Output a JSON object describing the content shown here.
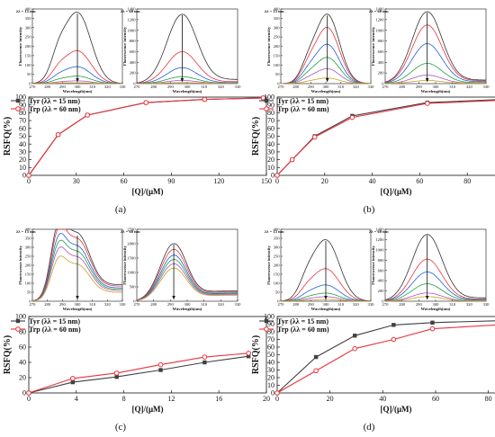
{
  "chart_data": [
    {
      "panel_label": "(a)",
      "type": "line",
      "xlabel": "[Q]/(μM)",
      "ylabel": "RSFQ(%)",
      "xlim": [
        0,
        150
      ],
      "ylim": [
        0,
        100
      ],
      "xticks": [
        0,
        30,
        60,
        90,
        120,
        150
      ],
      "yticks": [
        0,
        10,
        20,
        30,
        40,
        50,
        60,
        70,
        80,
        90,
        100
      ],
      "legend_position": "top-left",
      "series": [
        {
          "name": "Tyr (λλ = 15 nm)",
          "color": "#404040",
          "marker": "square",
          "x": [
            0,
            18.5,
            37,
            74,
            111,
            148
          ],
          "y": [
            0,
            52,
            77,
            93,
            97,
            99
          ]
        },
        {
          "name": "Trp (λλ = 60 nm)",
          "color": "#e8343c",
          "marker": "circle",
          "x": [
            0,
            18.5,
            37,
            74,
            111,
            148
          ],
          "y": [
            0,
            52,
            77,
            93,
            97,
            99
          ]
        }
      ],
      "insets": [
        {
          "label": "λλ = 15 nm",
          "ylabel": "Fluorescence intensity",
          "xlabel": "Wavelength(nm)",
          "xlim": [
            270,
            330
          ],
          "ylim": [
            0,
            400
          ],
          "xticks": [
            270,
            280,
            290,
            300,
            310,
            320,
            330
          ],
          "yticks": [
            0,
            50,
            100,
            150,
            200,
            250,
            300,
            350,
            400
          ],
          "peak": 300,
          "sigma": 9,
          "shoulder": 0.25,
          "peaks": [
            380,
            175,
            90,
            40,
            15,
            5
          ],
          "tail": 0
        },
        {
          "label": "λλ = 60 nm",
          "ylabel": "Fluorescence intensity",
          "xlabel": "Wavelength(nm)",
          "xlim": [
            270,
            330
          ],
          "ylim": [
            0,
            1400
          ],
          "xticks": [
            270,
            280,
            290,
            300,
            310,
            320,
            330
          ],
          "yticks": [
            0,
            200,
            400,
            600,
            800,
            1000,
            1200,
            1400
          ],
          "peak": 297,
          "sigma": 9,
          "shoulder": 0,
          "peaks": [
            1300,
            600,
            300,
            130,
            60,
            20
          ],
          "tail": 0.06
        }
      ]
    },
    {
      "panel_label": "(b)",
      "type": "line",
      "xlabel": "[Q]/(μM)",
      "ylabel": "RSFQ(%)",
      "xlim": [
        0,
        100
      ],
      "ylim": [
        0,
        100
      ],
      "xticks": [
        0,
        20,
        40,
        60,
        80,
        100
      ],
      "yticks": [
        0,
        10,
        20,
        30,
        40,
        50,
        60,
        70,
        80,
        90,
        100
      ],
      "legend_position": "top-left",
      "series": [
        {
          "name": "Tyr (λλ = 15 nm)",
          "color": "#404040",
          "marker": "square",
          "x": [
            0,
            6.3,
            15.8,
            31.6,
            63.2,
            94.9
          ],
          "y": [
            0,
            20,
            50,
            76,
            93,
            97
          ]
        },
        {
          "name": "Trp (λλ = 60 nm)",
          "color": "#e8343c",
          "marker": "circle",
          "x": [
            0,
            6.3,
            15.8,
            31.6,
            63.2,
            94.9
          ],
          "y": [
            0,
            20,
            49,
            74,
            92,
            96
          ]
        }
      ],
      "insets": [
        {
          "label": "λλ = 15 nm",
          "ylabel": "Fluorescence intensity",
          "xlabel": "Wavelength(nm)",
          "xlim": [
            270,
            330
          ],
          "ylim": [
            0,
            400
          ],
          "xticks": [
            270,
            280,
            290,
            300,
            310,
            320,
            330
          ],
          "yticks": [
            0,
            50,
            100,
            150,
            200,
            250,
            300,
            350,
            400
          ],
          "peak": 301,
          "sigma": 8,
          "shoulder": 0.2,
          "peaks": [
            370,
            300,
            210,
            140,
            80,
            30
          ],
          "tail": 0
        },
        {
          "label": "λλ = 60 nm",
          "ylabel": "Fluorescence intensity",
          "xlabel": "Wavelength(nm)",
          "xlim": [
            270,
            330
          ],
          "ylim": [
            0,
            1400
          ],
          "xticks": [
            270,
            280,
            290,
            300,
            310,
            320,
            330
          ],
          "yticks": [
            0,
            200,
            400,
            600,
            800,
            1000,
            1200,
            1400
          ],
          "peak": 295,
          "sigma": 9,
          "shoulder": 0,
          "peaks": [
            1350,
            1100,
            750,
            380,
            160,
            60
          ],
          "tail": 0.05
        }
      ]
    },
    {
      "panel_label": "(c)",
      "type": "line",
      "xlabel": "[Q]/(μM)",
      "ylabel": "RSFQ(%)",
      "xlim": [
        0,
        20
      ],
      "ylim": [
        0,
        100
      ],
      "xticks": [
        0,
        4,
        8,
        12,
        16,
        20
      ],
      "yticks": [
        0,
        20,
        40,
        60,
        80,
        100
      ],
      "legend_position": "top-left",
      "series": [
        {
          "name": "Tyr (λλ = 15 nm)",
          "color": "#404040",
          "marker": "square",
          "x": [
            0,
            3.7,
            7.4,
            11.1,
            14.8,
            18.5
          ],
          "y": [
            0,
            14,
            21,
            30,
            40,
            48
          ]
        },
        {
          "name": "Trp (λλ = 60 nm)",
          "color": "#e8343c",
          "marker": "circle",
          "x": [
            0,
            3.7,
            7.4,
            11.1,
            14.8,
            18.5
          ],
          "y": [
            0,
            19,
            26,
            37,
            47,
            52
          ]
        }
      ],
      "insets": [
        {
          "label": "λλ = 15 nm",
          "ylabel": "Fluorescence intensity",
          "xlabel": "Wavelength(nm)",
          "xlim": [
            270,
            330
          ],
          "ylim": [
            0,
            400
          ],
          "xticks": [
            270,
            280,
            290,
            300,
            310,
            320,
            330
          ],
          "yticks": [
            0,
            50,
            100,
            150,
            200,
            250,
            300,
            350,
            400
          ],
          "peak": 300,
          "sigma": 9,
          "shoulder": 0.85,
          "peaks": [
            370,
            340,
            300,
            270,
            240,
            200
          ],
          "tail": 0.25
        },
        {
          "label": "λλ = 60 nm",
          "ylabel": "Fluorescence intensity",
          "xlabel": "Wavelength(nm)",
          "xlim": [
            270,
            330
          ],
          "ylim": [
            0,
            2500
          ],
          "xticks": [
            270,
            280,
            290,
            300,
            310,
            320,
            330
          ],
          "yticks": [
            0,
            500,
            1000,
            1500,
            2000,
            2500
          ],
          "peak": 292,
          "sigma": 8,
          "shoulder": 0,
          "peaks": [
            2000,
            1800,
            1600,
            1450,
            1300,
            1150
          ],
          "tail": 0.18
        }
      ]
    },
    {
      "panel_label": "(d)",
      "type": "line",
      "xlabel": "[Q]/(μM)",
      "ylabel": "RSFQ(%)",
      "xlim": [
        0,
        90
      ],
      "ylim": [
        0,
        100
      ],
      "xticks": [
        0,
        20,
        40,
        60,
        80
      ],
      "yticks": [
        0,
        10,
        20,
        30,
        40,
        50,
        60,
        70,
        80,
        90,
        100
      ],
      "legend_position": "top-left",
      "series": [
        {
          "name": "Tyr (λλ = 15 nm)",
          "color": "#404040",
          "marker": "square",
          "x": [
            0,
            14.7,
            29.4,
            44.1,
            58.8,
            88.2
          ],
          "y": [
            0,
            47,
            75,
            89,
            92,
            95
          ]
        },
        {
          "name": "Trp (λλ = 60 nm)",
          "color": "#e8343c",
          "marker": "circle",
          "x": [
            0,
            14.7,
            29.4,
            44.1,
            58.8,
            88.2
          ],
          "y": [
            0,
            29,
            58,
            70,
            84,
            90
          ]
        }
      ],
      "insets": [
        {
          "label": "λλ = 15 nm",
          "ylabel": "Fluorescence intensity",
          "xlabel": "Wavelength(nm)",
          "xlim": [
            270,
            330
          ],
          "ylim": [
            0,
            400
          ],
          "xticks": [
            270,
            280,
            290,
            300,
            310,
            320,
            330
          ],
          "yticks": [
            0,
            50,
            100,
            150,
            200,
            250,
            300,
            350,
            400
          ],
          "peak": 300,
          "sigma": 9,
          "shoulder": 0.2,
          "peaks": [
            340,
            180,
            90,
            45,
            25,
            10
          ],
          "tail": 0
        },
        {
          "label": "λλ = 60 nm",
          "ylabel": "Fluorescence intensity",
          "xlabel": "Wavelength(nm)",
          "xlim": [
            270,
            330
          ],
          "ylim": [
            0,
            1400
          ],
          "xticks": [
            270,
            280,
            290,
            300,
            310,
            320,
            330
          ],
          "yticks": [
            0,
            200,
            400,
            600,
            800,
            1000,
            1200,
            1400
          ],
          "peak": 295,
          "sigma": 9,
          "shoulder": 0,
          "peaks": [
            1300,
            820,
            570,
            340,
            160,
            90
          ],
          "tail": 0.05
        }
      ]
    }
  ],
  "inset_colors": [
    "#333333",
    "#e8343c",
    "#2060d8",
    "#20a040",
    "#b050c0",
    "#c8a020"
  ]
}
